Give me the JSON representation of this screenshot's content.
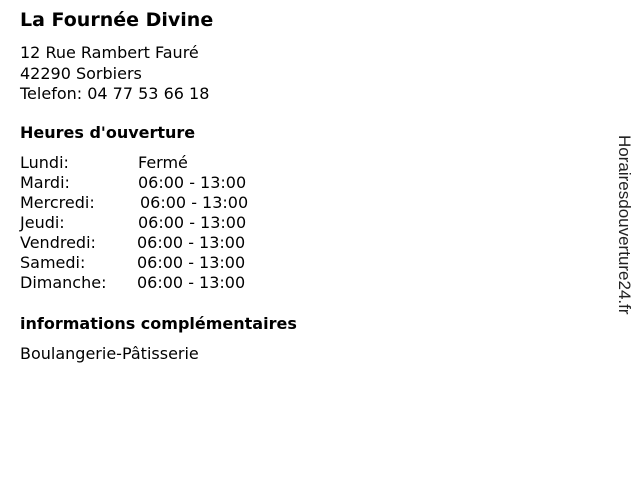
{
  "business": {
    "name": "La Fournée Divine",
    "street": "12 Rue Rambert Fauré",
    "city": "42290 Sorbiers",
    "phone": "Telefon: 04 77 53 66 18"
  },
  "hours": {
    "heading": "Heures d'ouverture",
    "rows": [
      {
        "day": "Lundi:",
        "time": "Fermé"
      },
      {
        "day": "Mardi:",
        "time": "06:00 - 13:00"
      },
      {
        "day": "Mercredi:",
        "time": "06:00 - 13:00"
      },
      {
        "day": "Jeudi:",
        "time": "06:00 - 13:00"
      },
      {
        "day": "Vendredi:",
        "time": "06:00 - 13:00"
      },
      {
        "day": "Samedi:",
        "time": "06:00 - 13:00"
      },
      {
        "day": "Dimanche:",
        "time": "06:00 - 13:00"
      }
    ]
  },
  "info": {
    "heading": "informations complémentaires",
    "text": "Boulangerie-Pâtisserie"
  },
  "watermark": "Horairesdouverture24.fr"
}
